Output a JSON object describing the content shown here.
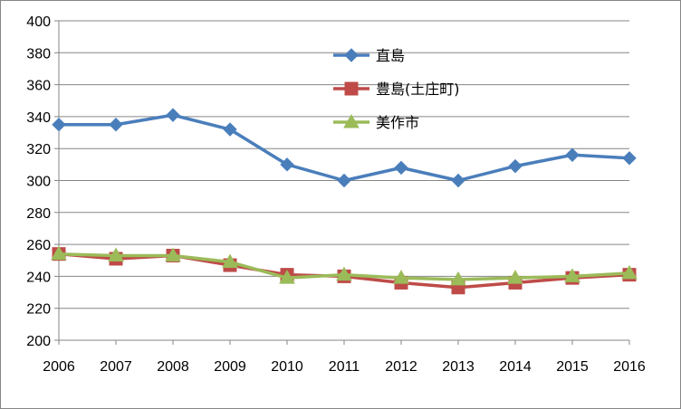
{
  "chart_data": {
    "type": "line",
    "title": "",
    "xlabel": "",
    "ylabel": "",
    "ylim": [
      200,
      400
    ],
    "ytick_step": 20,
    "grid": "horizontal",
    "legend_position": "top-center",
    "categories": [
      "2006",
      "2007",
      "2008",
      "2009",
      "2010",
      "2011",
      "2012",
      "2013",
      "2014",
      "2015",
      "2016"
    ],
    "series": [
      {
        "name": "直島",
        "marker": "diamond",
        "color": "#4A7EBB",
        "marker_color": "#4A7EBB",
        "values": [
          335,
          335,
          341,
          332,
          310,
          300,
          308,
          300,
          309,
          316,
          314
        ]
      },
      {
        "name": "豊島(土庄町)",
        "marker": "square",
        "color": "#BE4B48",
        "marker_color": "#BE4B48",
        "values": [
          254,
          251,
          253,
          247,
          241,
          240,
          236,
          233,
          236,
          239,
          241
        ]
      },
      {
        "name": "美作市",
        "marker": "triangle",
        "color": "#9BBB59",
        "marker_color": "#9BBB59",
        "values": [
          254,
          253,
          253,
          249,
          239,
          241,
          239,
          238,
          239,
          240,
          242
        ]
      }
    ]
  }
}
